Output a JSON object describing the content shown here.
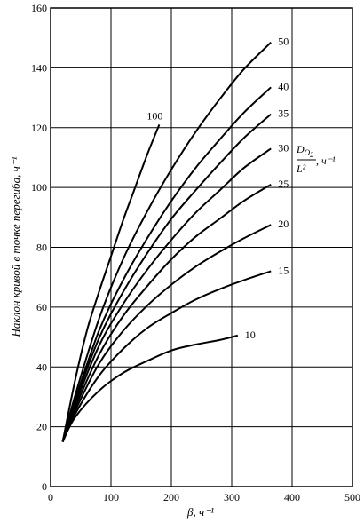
{
  "chart_data": {
    "type": "line",
    "title": "",
    "xlabel": "β, ч⁻¹",
    "ylabel": "Наклон кривой в точке перегиба, ч⁻¹",
    "xlim": [
      0,
      500
    ],
    "ylim": [
      0,
      160
    ],
    "xticks": [
      0,
      100,
      200,
      300,
      400,
      500
    ],
    "yticks": [
      0,
      20,
      40,
      60,
      80,
      100,
      120,
      140,
      160
    ],
    "grid": true,
    "legend_title": "D_O₂/L², ч⁻¹",
    "legend_title_parts": {
      "num": "D",
      "sub": "O",
      "sub2": "2",
      "den": "L²",
      "unit": ", ч⁻¹"
    },
    "series": [
      {
        "name": "10",
        "x": [
          20,
          40,
          80,
          120,
          160,
          200,
          240,
          280,
          310
        ],
        "y": [
          15,
          23,
          32,
          38,
          42,
          45.5,
          47.5,
          49,
          50.5
        ]
      },
      {
        "name": "15",
        "x": [
          20,
          40,
          80,
          120,
          160,
          200,
          240,
          280,
          320,
          365
        ],
        "y": [
          15,
          24,
          37,
          46,
          53,
          58,
          62.5,
          66,
          69,
          72
        ]
      },
      {
        "name": "20",
        "x": [
          20,
          40,
          80,
          120,
          160,
          200,
          240,
          280,
          320,
          365
        ],
        "y": [
          15,
          25,
          41,
          52,
          60.5,
          67.5,
          73.5,
          78.5,
          83,
          87.5
        ]
      },
      {
        "name": "25",
        "x": [
          20,
          40,
          80,
          120,
          160,
          200,
          240,
          280,
          320,
          365
        ],
        "y": [
          15,
          26,
          44,
          57,
          67,
          76,
          83.5,
          89.5,
          95.5,
          101
        ]
      },
      {
        "name": "30",
        "x": [
          20,
          40,
          80,
          120,
          160,
          200,
          240,
          280,
          320,
          365
        ],
        "y": [
          15,
          27,
          47,
          61,
          72.5,
          82.5,
          91.5,
          99,
          106.5,
          113
        ]
      },
      {
        "name": "35",
        "x": [
          20,
          40,
          80,
          120,
          160,
          200,
          240,
          280,
          320,
          365
        ],
        "y": [
          15,
          28,
          49.5,
          65,
          78,
          89.5,
          99,
          108,
          116.5,
          124.5
        ]
      },
      {
        "name": "40",
        "x": [
          20,
          40,
          80,
          120,
          160,
          200,
          240,
          280,
          320,
          365
        ],
        "y": [
          15,
          28.5,
          52,
          69,
          83,
          95.5,
          106.5,
          116,
          125,
          133.5
        ]
      },
      {
        "name": "50",
        "x": [
          20,
          40,
          80,
          120,
          160,
          200,
          240,
          280,
          320,
          365
        ],
        "y": [
          15,
          30,
          56,
          76,
          92,
          106,
          118.5,
          129.5,
          139.5,
          148.5
        ]
      },
      {
        "name": "100",
        "x": [
          20,
          40,
          60,
          80,
          100,
          120,
          140,
          160,
          180
        ],
        "y": [
          15,
          35,
          52,
          65,
          77,
          89,
          100,
          111,
          121
        ]
      }
    ]
  }
}
